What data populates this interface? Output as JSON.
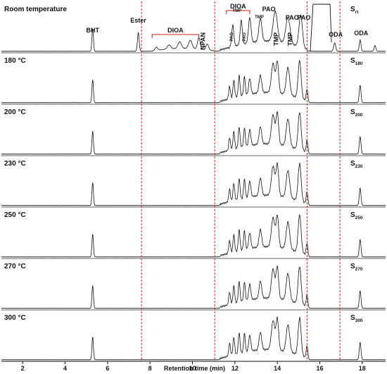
{
  "chart_data": {
    "type": "line",
    "xlabel": "Retention time (min)",
    "x_ticks": [
      2,
      4,
      6,
      8,
      10,
      12,
      14,
      16,
      18
    ],
    "xlim": [
      1.0,
      19.1
    ],
    "grid": false,
    "reference_lines_x": [
      7.6,
      11.05,
      15.4,
      16.95
    ],
    "reference_line_color": "#e0201a",
    "line_color": "#111111",
    "panels": [
      {
        "name": "Room temperature",
        "sample_label": "S",
        "sample_sub": "rt",
        "tall_peak": 0
      },
      {
        "name": "180 °C",
        "sample_label": "S",
        "sample_sub": "180",
        "tall_peak": 0.55
      },
      {
        "name": "200 °C",
        "sample_label": "S",
        "sample_sub": "200",
        "tall_peak": 0.55
      },
      {
        "name": "230 °C",
        "sample_label": "S",
        "sample_sub": "230",
        "tall_peak": 0.55
      },
      {
        "name": "250 °C",
        "sample_label": "S",
        "sample_sub": "250",
        "tall_peak": 0.55
      },
      {
        "name": "270 °C",
        "sample_label": "S",
        "sample_sub": "270",
        "tall_peak": 0.55
      },
      {
        "name": "300 °C",
        "sample_label": "S",
        "sample_sub": "300",
        "tall_peak": 0.55
      }
    ],
    "peaks_room_temperature": [
      {
        "x": 5.3,
        "h": 0.55,
        "w": 0.035
      },
      {
        "x": 7.45,
        "h": 0.45,
        "w": 0.04
      },
      {
        "x": 8.3,
        "h": 0.08,
        "w": 0.06
      },
      {
        "x": 8.9,
        "h": 0.1,
        "w": 0.08
      },
      {
        "x": 9.4,
        "h": 0.16,
        "w": 0.08
      },
      {
        "x": 9.9,
        "h": 0.2,
        "w": 0.08
      },
      {
        "x": 10.3,
        "h": 0.28,
        "w": 0.06
      },
      {
        "x": 10.7,
        "h": 0.14,
        "w": 0.06
      },
      {
        "x": 11.9,
        "h": 0.52,
        "w": 0.05
      },
      {
        "x": 12.3,
        "h": 0.58,
        "w": 0.05
      },
      {
        "x": 12.7,
        "h": 0.6,
        "w": 0.06
      },
      {
        "x": 13.2,
        "h": 0.55,
        "w": 0.07
      },
      {
        "x": 13.9,
        "h": 0.72,
        "w": 0.1
      },
      {
        "x": 14.5,
        "h": 0.62,
        "w": 0.1
      },
      {
        "x": 15.1,
        "h": 0.78,
        "w": 0.08
      },
      {
        "x": 16.7,
        "h": 0.2,
        "w": 0.05
      },
      {
        "x": 17.9,
        "h": 0.28,
        "w": 0.04
      },
      {
        "x": 18.6,
        "h": 0.14,
        "w": 0.04
      }
    ],
    "peaks_heated": [
      {
        "x": 5.3,
        "h": 0.55,
        "w": 0.035
      },
      {
        "x": 11.75,
        "h": 0.3,
        "w": 0.04
      },
      {
        "x": 11.95,
        "h": 0.42,
        "w": 0.04
      },
      {
        "x": 12.2,
        "h": 0.5,
        "w": 0.04
      },
      {
        "x": 12.45,
        "h": 0.45,
        "w": 0.04
      },
      {
        "x": 12.7,
        "h": 0.38,
        "w": 0.05
      },
      {
        "x": 13.2,
        "h": 0.42,
        "w": 0.06
      },
      {
        "x": 13.8,
        "h": 0.7,
        "w": 0.08
      },
      {
        "x": 14.0,
        "h": 0.75,
        "w": 0.06
      },
      {
        "x": 14.5,
        "h": 0.65,
        "w": 0.08
      },
      {
        "x": 15.05,
        "h": 0.9,
        "w": 0.07
      },
      {
        "x": 15.4,
        "h": 0.3,
        "w": 0.04
      },
      {
        "x": 17.9,
        "h": 0.42,
        "w": 0.04
      }
    ],
    "annotations": [
      {
        "text": "BHT",
        "x": 5.3
      },
      {
        "text": "Ester",
        "x": 7.45
      },
      {
        "text": "DIOA",
        "x": 9.2,
        "bracket": [
          8.1,
          10.3
        ]
      },
      {
        "text": "NPAN",
        "x": 10.6,
        "rotated": true
      },
      {
        "text": "DIOA",
        "x": 12.15,
        "bracket": [
          11.6,
          12.7
        ]
      },
      {
        "text": "TMP",
        "x": 12.1,
        "small": true
      },
      {
        "text": "PAO",
        "x": 11.9,
        "small": true,
        "rotated": true
      },
      {
        "text": "PAO",
        "x": 12.5,
        "small": true,
        "rotated": true
      },
      {
        "text": "TMP",
        "x": 13.15,
        "small": true
      },
      {
        "text": "PAO",
        "x": 13.6
      },
      {
        "text": "TMP",
        "x": 14.05,
        "rotated": true
      },
      {
        "text": "TMP",
        "x": 14.7,
        "rotated": true
      },
      {
        "text": "PAO",
        "x": 14.7
      },
      {
        "text": "PAO",
        "x": 15.25
      },
      {
        "text": "ODA",
        "x": 16.75
      },
      {
        "text": "ODA",
        "x": 17.95
      }
    ]
  }
}
